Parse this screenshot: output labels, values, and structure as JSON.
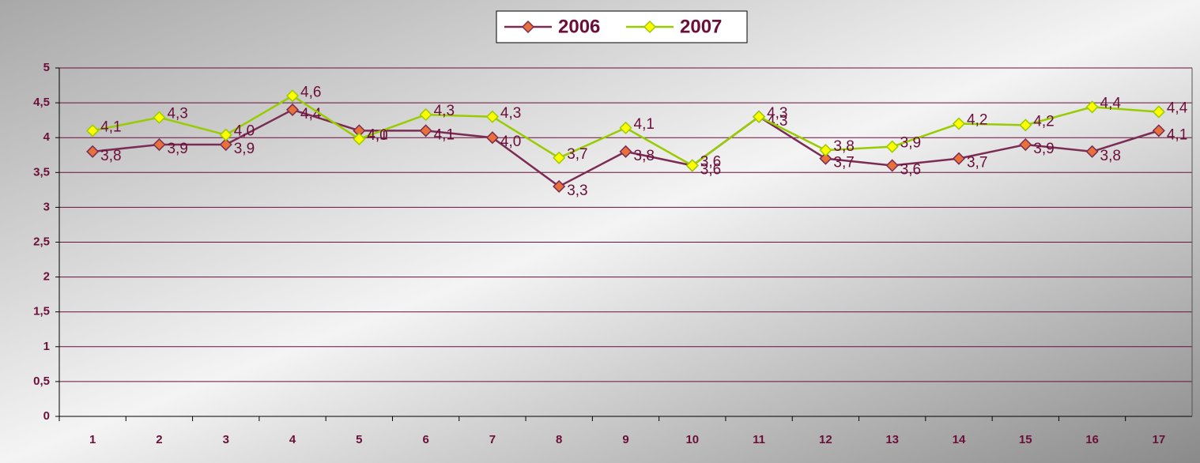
{
  "chart_data": {
    "type": "line",
    "categories": [
      "1",
      "2",
      "3",
      "4",
      "5",
      "6",
      "7",
      "8",
      "9",
      "10",
      "11",
      "12",
      "13",
      "14",
      "15",
      "16",
      "17"
    ],
    "series": [
      {
        "name": "2006",
        "color": "#7b2c55",
        "marker_color": "#e8703a",
        "values": [
          3.8,
          3.9,
          3.9,
          4.4,
          4.1,
          4.1,
          4.0,
          3.3,
          3.8,
          3.6,
          4.3,
          3.7,
          3.6,
          3.7,
          3.9,
          3.8,
          4.1
        ],
        "value_labels": [
          "3,8",
          "3,9",
          "3,9",
          "4,4",
          "4,1",
          "4,1",
          "4,0",
          "3,3",
          "3,8",
          "3,6",
          "4,3",
          "3,7",
          "3,6",
          "3,7",
          "3,9",
          "3,8",
          "4,1"
        ]
      },
      {
        "name": "2007",
        "color": "#99cc00",
        "marker_color": "#ffff00",
        "values": [
          4.1,
          4.29,
          4.04,
          4.6,
          3.98,
          4.33,
          4.3,
          3.71,
          4.14,
          3.6,
          4.3,
          3.82,
          3.87,
          4.2,
          4.18,
          4.44,
          4.37
        ],
        "value_labels": [
          "4,1",
          "4,3",
          "4,0",
          "4,6",
          "4,0",
          "4,3",
          "4,3",
          "3,7",
          "4,1",
          "3,6",
          "4,3",
          "3,8",
          "3,9",
          "4,2",
          "4,2",
          "4,4",
          "4,4"
        ]
      }
    ],
    "ylim": [
      0,
      5
    ],
    "yticks": [
      0,
      {
        "value": 0.5,
        "label": "0,5"
      },
      1,
      {
        "value": 1.5,
        "label": "1,5"
      },
      2,
      {
        "value": 2.5,
        "label": "2,5"
      },
      3,
      {
        "value": 3.5,
        "label": "3,5"
      },
      4,
      {
        "value": 4.5,
        "label": "4,5"
      },
      5
    ],
    "grid": true,
    "legend": "top"
  }
}
